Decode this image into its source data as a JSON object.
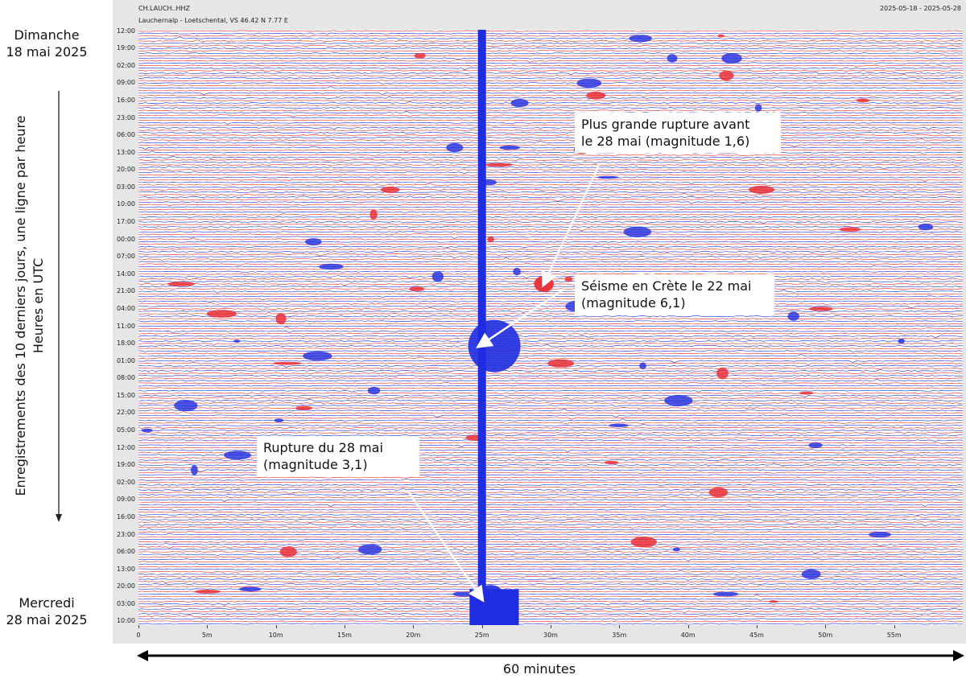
{
  "header": {
    "station": "CH.LAUCH..HHZ",
    "location": "Lauchernalp - Loetschental, VS  46.42 N 7.77 E",
    "date_range": "2025-05-18 - 2025-05-28"
  },
  "labels": {
    "start_day": "Dimanche\n18 mai 2025",
    "end_day": "Mercredi\n28 mai 2025",
    "y_axis_title": "Enregistrements des 10 derniers jours, une ligne par heure\nHeures en UTC",
    "x_axis_caption": "60 minutes"
  },
  "annotations": [
    {
      "id": "largest-rupture-before",
      "text": "Plus grande rupture avant\nle 28 mai (magnitude 1,6)",
      "target_minute": 29.5,
      "target_row": 102
    },
    {
      "id": "crete-earthquake",
      "text": "Séisme en Crète le 22 mai\n(magnitude 6,1)",
      "target_minute": 24.8,
      "target_row": 127
    },
    {
      "id": "rupture-28-may",
      "text": "Rupture du 28 mai\n(magnitude 3,1)",
      "target_minute": 25.0,
      "target_row": 229
    }
  ],
  "colors": {
    "trace_red": "#e8262b",
    "trace_blue": "#1f2de0",
    "panel": "#e6e6e6",
    "annotation_box": "#ffffff"
  },
  "chart_data": {
    "type": "seismic helicorder",
    "station": "CH.LAUCH..HHZ",
    "start": "2025-05-18",
    "end": "2025-05-28",
    "row_duration_minutes": 60,
    "row_count": 240,
    "alternating_colors": [
      "red",
      "blue"
    ],
    "x_ticks": [
      "0",
      "5m",
      "10m",
      "15m",
      "20m",
      "25m",
      "30m",
      "35m",
      "40m",
      "45m",
      "50m",
      "55m"
    ],
    "x_tick_minutes": [
      0,
      5,
      10,
      15,
      20,
      25,
      30,
      35,
      40,
      45,
      50,
      55
    ],
    "xlim": [
      0,
      60
    ],
    "y_ticks": [
      "12:00",
      "19:00",
      "02:00",
      "09:00",
      "16:00",
      "23:00",
      "06:00",
      "13:00",
      "20:00",
      "03:00",
      "10:00",
      "17:00",
      "00:00",
      "07:00",
      "14:00",
      "21:00",
      "04:00",
      "11:00",
      "18:00",
      "01:00",
      "08:00",
      "15:00",
      "22:00",
      "05:00",
      "12:00",
      "19:00",
      "02:00",
      "09:00",
      "16:00",
      "23:00",
      "06:00",
      "13:00",
      "20:00",
      "03:00",
      "10:00"
    ],
    "events": [
      {
        "name": "Plus grande rupture avant le 28 mai",
        "magnitude": 1.6,
        "minute": 28.8,
        "row": 102
      },
      {
        "name": "Séisme en Crète le 22 mai",
        "magnitude": 6.1,
        "minute": 24.0,
        "row": 127
      },
      {
        "name": "Rupture du 28 mai",
        "magnitude": 3.1,
        "minute": 24.5,
        "row": 229
      }
    ]
  }
}
